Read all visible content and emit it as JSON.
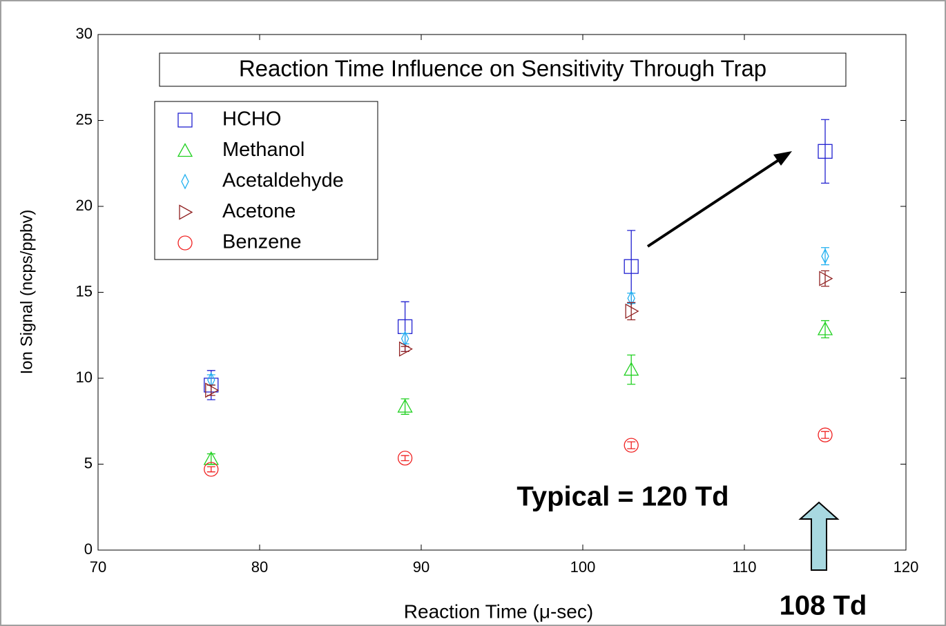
{
  "chart_data": {
    "type": "scatter",
    "title": "Reaction Time Influence on Sensitivity Through Trap",
    "x_label": "Reaction Time (μ-sec)",
    "y_label": "Ion Signal (ncps/ppbv)",
    "x": [
      77,
      89,
      103,
      115
    ],
    "series": [
      {
        "name": "HCHO",
        "color": "#2020d0",
        "marker": "square",
        "values": [
          9.6,
          13.0,
          16.5,
          23.2
        ],
        "errors": [
          0.85,
          1.45,
          2.1,
          1.85
        ]
      },
      {
        "name": "Methanol",
        "color": "#20d020",
        "marker": "triangle-up",
        "values": [
          5.3,
          8.35,
          10.5,
          12.85
        ],
        "errors": [
          0.3,
          0.45,
          0.85,
          0.5
        ]
      },
      {
        "name": "Acetaldehyde",
        "color": "#20b0f0",
        "marker": "diamond",
        "values": [
          9.9,
          12.3,
          14.65,
          17.1
        ],
        "errors": [
          0.3,
          0.3,
          0.3,
          0.5
        ]
      },
      {
        "name": "Acetone",
        "color": "#902020",
        "marker": "triangle-right",
        "values": [
          9.3,
          11.7,
          13.9,
          15.8
        ],
        "errors": [
          0.3,
          0.15,
          0.5,
          0.45
        ]
      },
      {
        "name": "Benzene",
        "color": "#f02020",
        "marker": "circle",
        "values": [
          4.7,
          5.35,
          6.1,
          6.7
        ],
        "errors": [
          0.15,
          0.15,
          0.2,
          0.2
        ]
      }
    ],
    "xlim": [
      70,
      120
    ],
    "xticks": [
      70,
      80,
      90,
      100,
      110,
      120
    ],
    "ylim": [
      0,
      30
    ],
    "yticks": [
      0,
      5,
      10,
      15,
      20,
      25,
      30
    ],
    "legend": "upper left",
    "annotations": [
      "Typical = 120 Td",
      "108 Td"
    ]
  }
}
